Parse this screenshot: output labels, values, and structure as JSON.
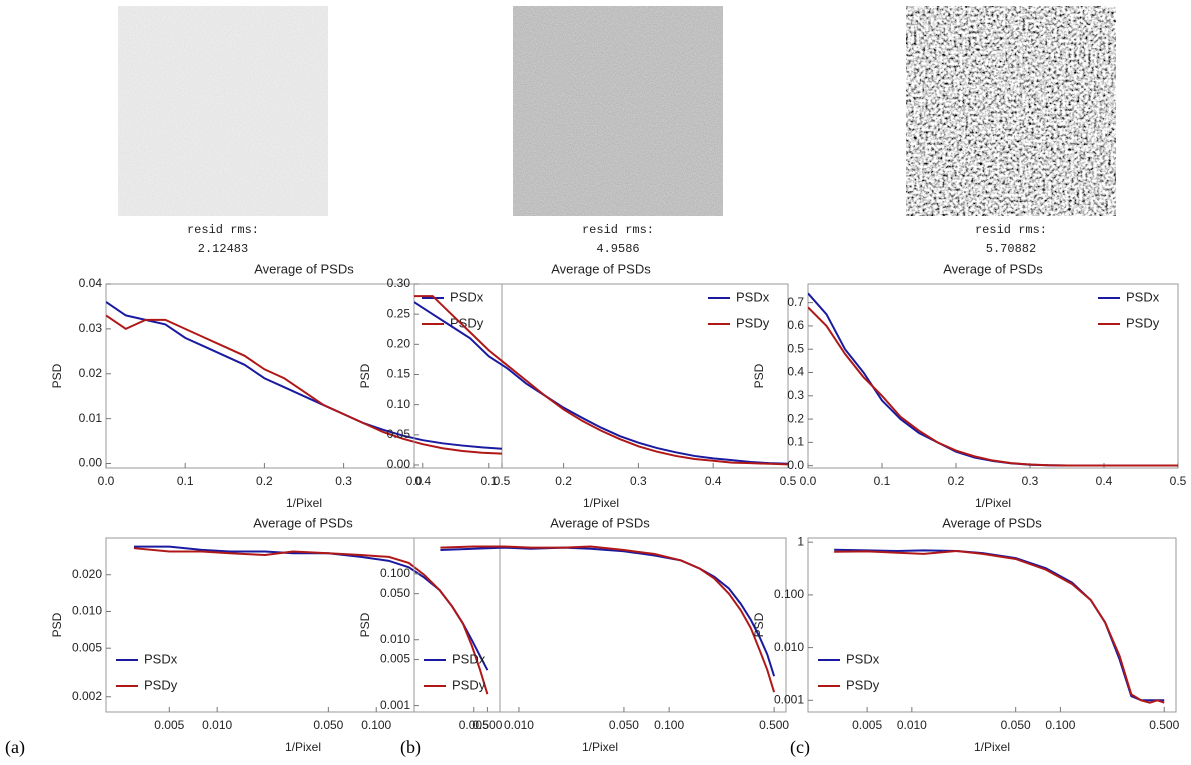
{
  "panels": [
    {
      "label": "(a)",
      "rms_label": "resid rms:",
      "rms_value": 2.12483
    },
    {
      "label": "(b)",
      "rms_label": "resid rms:",
      "rms_value": 4.9586
    },
    {
      "label": "(c)",
      "rms_label": "resid rms:",
      "rms_value": 5.70882
    }
  ],
  "chart_data": [
    {
      "type": "line",
      "title": "Average of PSDs",
      "xlabel": "1/Pixel",
      "ylabel": "PSD",
      "legend": "upper right",
      "x": [
        0,
        0.025,
        0.05,
        0.075,
        0.1,
        0.125,
        0.15,
        0.175,
        0.2,
        0.225,
        0.25,
        0.275,
        0.3,
        0.325,
        0.35,
        0.375,
        0.4,
        0.425,
        0.45,
        0.475,
        0.5
      ],
      "series": [
        {
          "name": "PSDx",
          "color": "#1a1aa0",
          "values": [
            0.036,
            0.033,
            0.032,
            0.031,
            0.028,
            0.026,
            0.024,
            0.022,
            0.019,
            0.017,
            0.015,
            0.013,
            0.011,
            0.009,
            0.0075,
            0.0062,
            0.0052,
            0.0045,
            0.004,
            0.0036,
            0.0033
          ]
        },
        {
          "name": "PSDy",
          "color": "#b01818",
          "values": [
            0.033,
            0.03,
            0.032,
            0.032,
            0.03,
            0.028,
            0.026,
            0.024,
            0.021,
            0.019,
            0.016,
            0.013,
            0.011,
            0.009,
            0.007,
            0.0055,
            0.0043,
            0.0034,
            0.0028,
            0.0024,
            0.0022
          ]
        }
      ],
      "xlim": [
        0,
        0.5
      ],
      "xticks": [
        {
          "value": 0,
          "label": "0.0"
        },
        0.1,
        0.2,
        0.3,
        0.4,
        0.5
      ],
      "ylim": [
        -0.001,
        0.04
      ],
      "yticks": [
        {
          "value": 0,
          "label": "0.00"
        },
        0.01,
        0.02,
        0.03,
        0.04
      ]
    },
    {
      "type": "line",
      "title": "Average of PSDs",
      "xlabel": "1/Pixel",
      "ylabel": "PSD",
      "legend": "upper right",
      "x": [
        0,
        0.025,
        0.05,
        0.075,
        0.1,
        0.125,
        0.15,
        0.175,
        0.2,
        0.225,
        0.25,
        0.275,
        0.3,
        0.325,
        0.35,
        0.375,
        0.4,
        0.425,
        0.45,
        0.475,
        0.5
      ],
      "series": [
        {
          "name": "PSDx",
          "color": "#1a1aa0",
          "values": [
            0.27,
            0.25,
            0.23,
            0.21,
            0.18,
            0.16,
            0.135,
            0.115,
            0.095,
            0.078,
            0.062,
            0.048,
            0.037,
            0.028,
            0.021,
            0.015,
            0.011,
            0.008,
            0.005,
            0.003,
            0.002
          ]
        },
        {
          "name": "PSDy",
          "color": "#b01818",
          "values": [
            0.28,
            0.28,
            0.25,
            0.22,
            0.19,
            0.165,
            0.14,
            0.115,
            0.092,
            0.073,
            0.057,
            0.043,
            0.031,
            0.022,
            0.015,
            0.01,
            0.007,
            0.004,
            0.003,
            0.002,
            0.001
          ]
        }
      ],
      "xlim": [
        0,
        0.5
      ],
      "xticks": [
        {
          "value": 0,
          "label": "0.0"
        },
        0.1,
        0.2,
        0.3,
        0.4,
        0.5
      ],
      "ylim": [
        -0.005,
        0.3
      ],
      "yticks": [
        {
          "value": 0,
          "label": "0.00"
        },
        0.05,
        {
          "value": 0.1,
          "label": "0.10"
        },
        0.15,
        {
          "value": 0.2,
          "label": "0.20"
        },
        0.25,
        {
          "value": 0.3,
          "label": "0.30"
        }
      ]
    },
    {
      "type": "line",
      "title": "Average of PSDs",
      "xlabel": "1/Pixel",
      "ylabel": "PSD",
      "legend": "upper right",
      "x": [
        0,
        0.025,
        0.05,
        0.075,
        0.1,
        0.125,
        0.15,
        0.175,
        0.2,
        0.225,
        0.25,
        0.275,
        0.3,
        0.325,
        0.35,
        0.375,
        0.4,
        0.425,
        0.45,
        0.475,
        0.5
      ],
      "series": [
        {
          "name": "PSDx",
          "color": "#1a1aa0",
          "values": [
            0.74,
            0.65,
            0.5,
            0.4,
            0.28,
            0.2,
            0.14,
            0.1,
            0.06,
            0.035,
            0.02,
            0.01,
            0.004,
            0.002,
            0.001,
            0.001,
            0.001,
            0.001,
            0.001,
            0.001,
            0.001
          ]
        },
        {
          "name": "PSDy",
          "color": "#b01818",
          "values": [
            0.68,
            0.6,
            0.48,
            0.38,
            0.3,
            0.21,
            0.15,
            0.1,
            0.065,
            0.04,
            0.022,
            0.011,
            0.005,
            0.002,
            0.001,
            0.001,
            0.001,
            0.001,
            0.001,
            0.001,
            0.001
          ]
        }
      ],
      "xlim": [
        0,
        0.5
      ],
      "xticks": [
        {
          "value": 0,
          "label": "0.0"
        },
        0.1,
        0.2,
        0.3,
        0.4,
        0.5
      ],
      "ylim": [
        -0.01,
        0.78
      ],
      "yticks": [
        {
          "value": 0,
          "label": "0.0"
        },
        0.1,
        0.2,
        0.3,
        0.4,
        0.5,
        0.6,
        0.7
      ]
    },
    {
      "type": "line",
      "title": "Average of PSDs",
      "xlabel": "1/Pixel",
      "ylabel": "PSD",
      "legend": "lower left",
      "xscale": "log",
      "yscale": "log",
      "x": [
        0.003,
        0.005,
        0.008,
        0.012,
        0.02,
        0.03,
        0.05,
        0.08,
        0.12,
        0.16,
        0.2,
        0.25,
        0.3,
        0.35,
        0.4,
        0.45,
        0.5
      ],
      "series": [
        {
          "name": "PSDx",
          "color": "#1a1aa0",
          "values": [
            0.034,
            0.034,
            0.032,
            0.031,
            0.031,
            0.03,
            0.03,
            0.028,
            0.026,
            0.023,
            0.019,
            0.015,
            0.011,
            0.008,
            0.0058,
            0.0043,
            0.0033
          ]
        },
        {
          "name": "PSDy",
          "color": "#b01818",
          "values": [
            0.033,
            0.031,
            0.031,
            0.03,
            0.029,
            0.031,
            0.03,
            0.029,
            0.028,
            0.025,
            0.02,
            0.015,
            0.011,
            0.008,
            0.0052,
            0.0033,
            0.0021
          ]
        }
      ],
      "xlim": [
        0.002,
        0.6
      ],
      "xticks": [
        0.005,
        {
          "value": 0.01,
          "label": "0.010"
        },
        {
          "value": 0.05,
          "label": "0.050"
        },
        {
          "value": 0.1,
          "label": "0.100"
        },
        {
          "value": 0.5,
          "label": "0.500"
        }
      ],
      "ylim": [
        0.0015,
        0.04
      ],
      "yticks": [
        0.002,
        0.005,
        {
          "value": 0.01,
          "label": "0.010"
        },
        {
          "value": 0.02,
          "label": "0.020"
        }
      ]
    },
    {
      "type": "line",
      "title": "Average of PSDs",
      "xlabel": "1/Pixel",
      "ylabel": "PSD",
      "legend": "lower left",
      "xscale": "log",
      "yscale": "log",
      "x": [
        0.003,
        0.005,
        0.008,
        0.012,
        0.02,
        0.03,
        0.05,
        0.08,
        0.12,
        0.16,
        0.2,
        0.25,
        0.3,
        0.35,
        0.4,
        0.45,
        0.5
      ],
      "series": [
        {
          "name": "PSDx",
          "color": "#1a1aa0",
          "values": [
            0.23,
            0.24,
            0.25,
            0.24,
            0.25,
            0.24,
            0.22,
            0.19,
            0.16,
            0.12,
            0.09,
            0.06,
            0.035,
            0.02,
            0.011,
            0.006,
            0.0028
          ]
        },
        {
          "name": "PSDy",
          "color": "#b01818",
          "values": [
            0.25,
            0.26,
            0.26,
            0.25,
            0.25,
            0.26,
            0.23,
            0.2,
            0.16,
            0.12,
            0.085,
            0.05,
            0.028,
            0.015,
            0.007,
            0.0035,
            0.0016
          ]
        }
      ],
      "xlim": [
        0.002,
        0.6
      ],
      "xticks": [
        0.005,
        {
          "value": 0.01,
          "label": "0.010"
        },
        {
          "value": 0.05,
          "label": "0.050"
        },
        {
          "value": 0.1,
          "label": "0.100"
        },
        {
          "value": 0.5,
          "label": "0.500"
        }
      ],
      "ylim": [
        0.0008,
        0.35
      ],
      "yticks": [
        0.001,
        0.005,
        {
          "value": 0.01,
          "label": "0.010"
        },
        {
          "value": 0.05,
          "label": "0.050"
        },
        {
          "value": 0.1,
          "label": "0.100"
        }
      ]
    },
    {
      "type": "line",
      "title": "Average of PSDs",
      "xlabel": "1/Pixel",
      "ylabel": "PSD",
      "legend": "lower left",
      "xscale": "log",
      "yscale": "log",
      "x": [
        0.003,
        0.005,
        0.008,
        0.012,
        0.02,
        0.03,
        0.05,
        0.08,
        0.12,
        0.16,
        0.2,
        0.25,
        0.3,
        0.35,
        0.4,
        0.45,
        0.5
      ],
      "series": [
        {
          "name": "PSDx",
          "color": "#1a1aa0",
          "values": [
            0.72,
            0.7,
            0.68,
            0.7,
            0.68,
            0.62,
            0.5,
            0.32,
            0.17,
            0.08,
            0.03,
            0.006,
            0.0012,
            0.001,
            0.001,
            0.001,
            0.001
          ]
        },
        {
          "name": "PSDy",
          "color": "#b01818",
          "values": [
            0.66,
            0.67,
            0.63,
            0.6,
            0.68,
            0.6,
            0.48,
            0.3,
            0.16,
            0.08,
            0.03,
            0.007,
            0.0013,
            0.001,
            0.0009,
            0.001,
            0.0009
          ]
        }
      ],
      "xlim": [
        0.002,
        0.6
      ],
      "xticks": [
        0.005,
        {
          "value": 0.01,
          "label": "0.010"
        },
        {
          "value": 0.05,
          "label": "0.050"
        },
        {
          "value": 0.1,
          "label": "0.100"
        },
        {
          "value": 0.5,
          "label": "0.500"
        }
      ],
      "ylim": [
        0.0006,
        1.2
      ],
      "yticks": [
        0.001,
        {
          "value": 0.01,
          "label": "0.010"
        },
        {
          "value": 0.1,
          "label": "0.100"
        },
        1
      ]
    }
  ]
}
